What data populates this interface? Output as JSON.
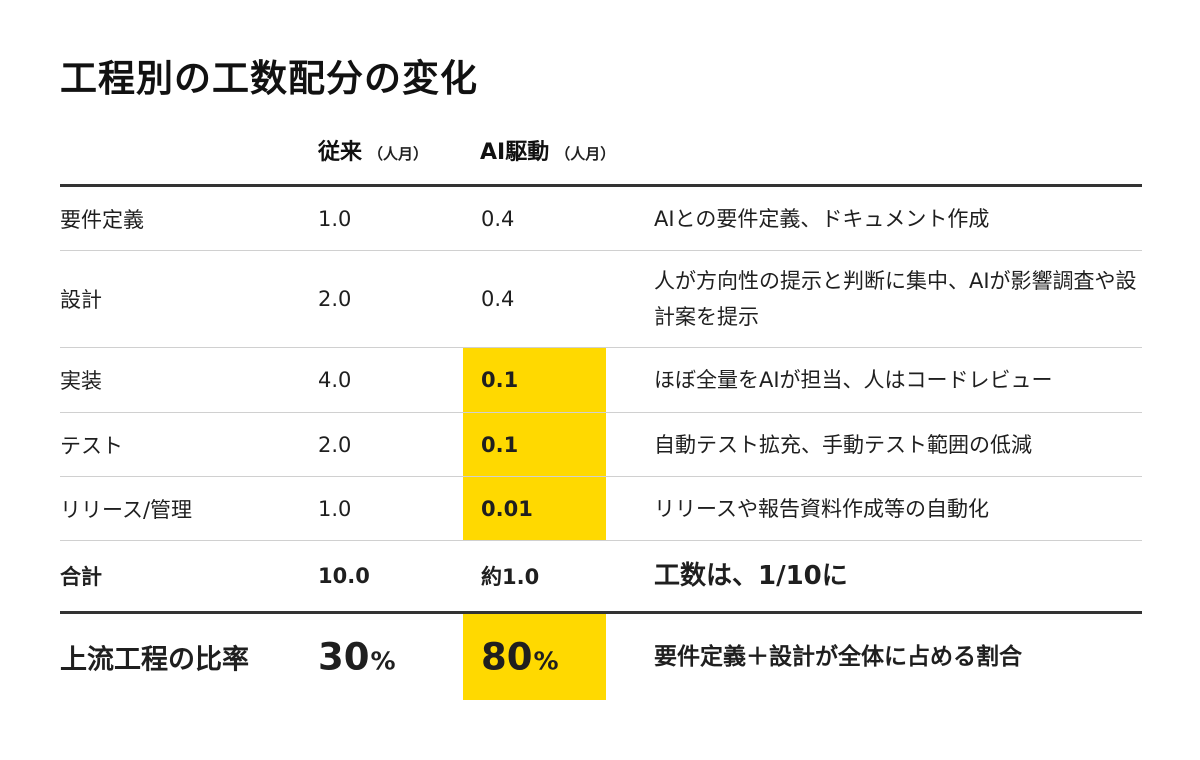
{
  "title": "工程別の工数配分の変化",
  "columns": {
    "traditional": "従来",
    "traditional_unit": "（人月）",
    "ai": "AI駆動",
    "ai_unit": "（人月）"
  },
  "rows": [
    {
      "process": "要件定義",
      "traditional": "1.0",
      "ai": "0.4",
      "note": "AIとの要件定義、ドキュメント作成"
    },
    {
      "process": "設計",
      "traditional": "2.0",
      "ai": "0.4",
      "note": "人が方向性の提示と判断に集中、AIが影響調査や設計案を提示"
    },
    {
      "process": "実装",
      "traditional": "4.0",
      "ai": "0.1",
      "note": "ほぼ全量をAIが担当、人はコードレビュー"
    },
    {
      "process": "テスト",
      "traditional": "2.0",
      "ai": "0.1",
      "note": "自動テスト拡充、手動テスト範囲の低減"
    },
    {
      "process": "リリース/管理",
      "traditional": "1.0",
      "ai": "0.01",
      "note": "リリースや報告資料作成等の自動化"
    }
  ],
  "total": {
    "label": "合計",
    "traditional": "10.0",
    "ai": "約1.0",
    "note": "工数は、1/10に"
  },
  "ratio": {
    "label": "上流工程の比率",
    "traditional": "30",
    "ai": "80",
    "pct": "%",
    "note": "要件定義＋設計が全体に占める割合"
  },
  "colors": {
    "highlight": "#ffd900",
    "text": "#1a1a1a",
    "rule": "#333333"
  }
}
